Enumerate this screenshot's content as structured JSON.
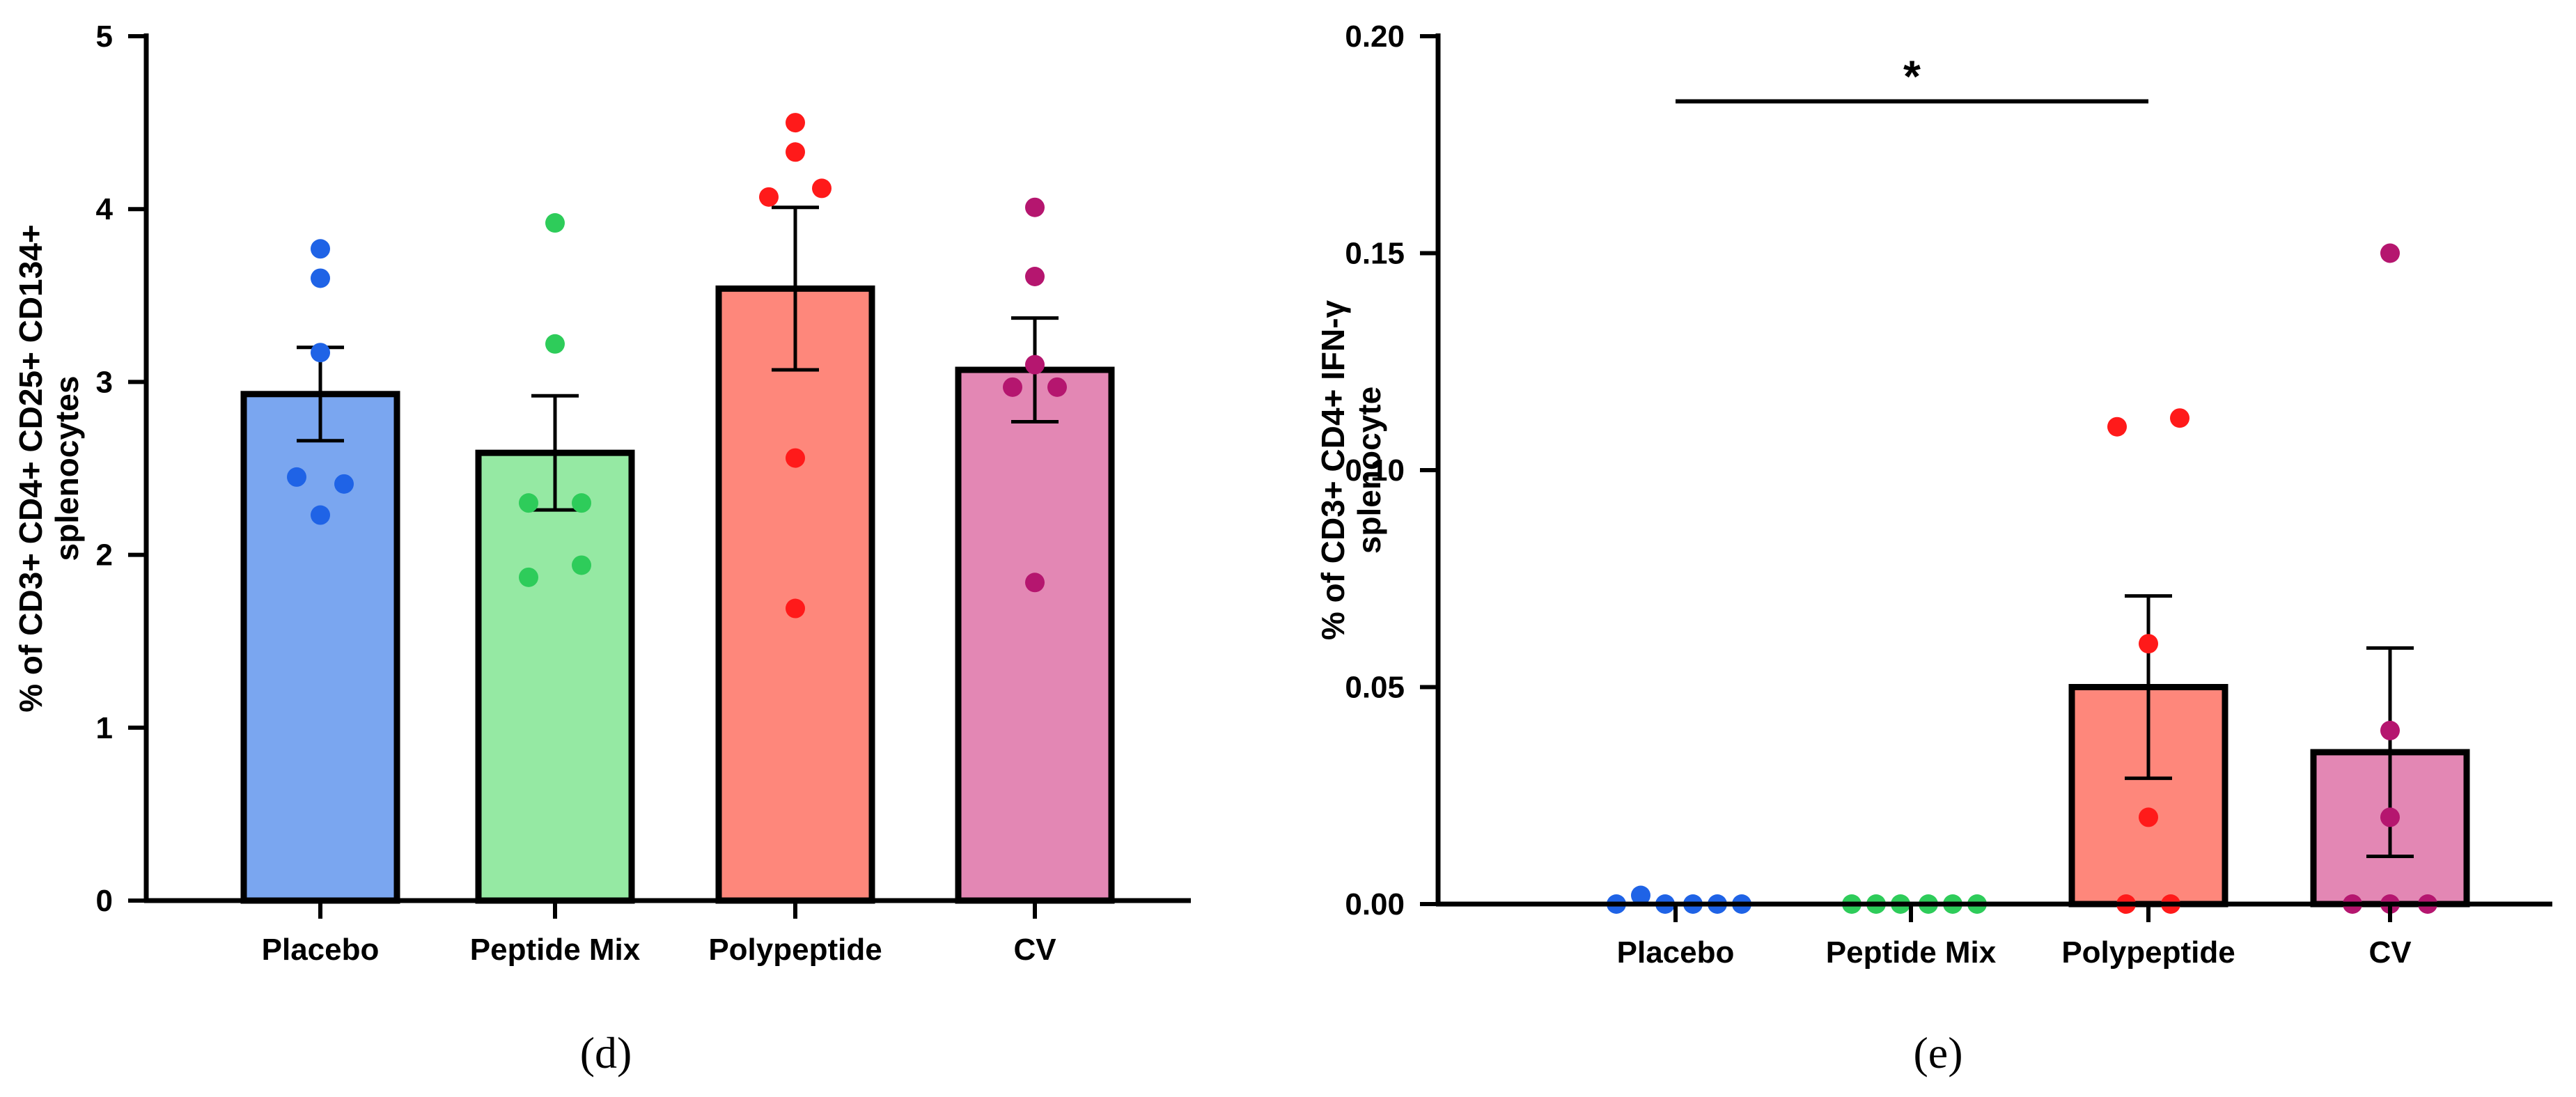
{
  "chart_data": [
    {
      "type": "bar",
      "panel_label": "(d)",
      "ylabel_line1": "% of CD3+ CD4+ CD25+ CD134+",
      "ylabel_line2": "splenocytes",
      "ylim": [
        0,
        5
      ],
      "yticks": [
        0,
        1,
        2,
        3,
        4,
        5
      ],
      "ytick_labels": [
        "0",
        "1",
        "2",
        "3",
        "4",
        "5"
      ],
      "categories": [
        "Placebo",
        "Peptide Mix",
        "Polypeptide",
        "CV"
      ],
      "values": [
        2.93,
        2.59,
        3.54,
        3.07
      ],
      "sem": [
        0.27,
        0.33,
        0.47,
        0.3
      ],
      "bar_colors": [
        "#7aa6f0",
        "#95e9a3",
        "#fe877b",
        "#e387b4"
      ],
      "point_colors": [
        "#1f63e6",
        "#2ecc5a",
        "#ff1a1a",
        "#b5166f"
      ],
      "points": [
        [
          3.77,
          3.6,
          3.17,
          2.45,
          2.41,
          2.23
        ],
        [
          3.92,
          3.22,
          2.3,
          2.3,
          1.94,
          1.87
        ],
        [
          4.5,
          4.33,
          4.12,
          4.07,
          2.56,
          1.69
        ],
        [
          4.01,
          3.61,
          3.1,
          2.97,
          2.97,
          1.84
        ]
      ]
    },
    {
      "type": "bar",
      "panel_label": "(e)",
      "ylabel_line1": "% of CD3+ CD4+ IFN-γ",
      "ylabel_line2": "splenocyte",
      "ylim": [
        0,
        0.2
      ],
      "yticks": [
        0,
        0.05,
        0.1,
        0.15,
        0.2
      ],
      "ytick_labels": [
        "0.00",
        "0.05",
        "0.10",
        "0.15",
        "0.20"
      ],
      "categories": [
        "Placebo",
        "Peptide Mix",
        "Polypeptide",
        "CV"
      ],
      "values": [
        0.0,
        0.0,
        0.05,
        0.035
      ],
      "sem": [
        0.0,
        0.0,
        0.021,
        0.024
      ],
      "bar_colors": [
        "#7aa6f0",
        "#95e9a3",
        "#fe877b",
        "#e387b4"
      ],
      "point_colors": [
        "#1f63e6",
        "#2ecc5a",
        "#ff1a1a",
        "#b5166f"
      ],
      "points": [
        [
          0.0,
          0.002,
          0.0,
          0.0,
          0.0,
          0.0
        ],
        [
          0.0,
          0.0,
          0.0,
          0.0,
          0.0,
          0.0
        ],
        [
          0.11,
          0.112,
          0.06,
          0.02,
          0.0,
          0.0
        ],
        [
          0.15,
          0.04,
          0.02,
          0.0,
          0.0,
          0.0
        ]
      ],
      "significance": {
        "from": "Placebo",
        "to": "Polypeptide",
        "label": "*",
        "y": 0.185
      }
    }
  ]
}
